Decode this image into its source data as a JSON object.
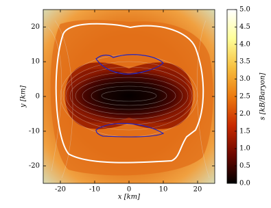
{
  "chart_data": {
    "type": "heatmap",
    "xlabel": "x [km]",
    "ylabel": "y [km]",
    "xlim": [
      -25,
      25
    ],
    "ylim": [
      -25,
      25
    ],
    "xticks": [
      -20,
      -10,
      0,
      10,
      20
    ],
    "yticks": [
      -20,
      -10,
      0,
      10,
      20
    ],
    "colorbar": {
      "label": "s [kB/Baryon]",
      "clim": [
        0,
        5
      ],
      "ticks": [
        {
          "value": 0,
          "label": "0.0"
        },
        {
          "value": 0.5,
          "label": "0.5"
        },
        {
          "value": 1,
          "label": "1.0"
        },
        {
          "value": 1.5,
          "label": "1.5"
        },
        {
          "value": 2,
          "label": "2.0"
        },
        {
          "value": 2.5,
          "label": "2.5"
        },
        {
          "value": 3,
          "label": "3.0"
        },
        {
          "value": 3.5,
          "label": "3.5"
        },
        {
          "value": 4,
          "label": "4.0"
        },
        {
          "value": 4.5,
          "label": "4.5"
        },
        {
          "value": 5,
          "label": "5.0"
        }
      ],
      "colormap": [
        "#000000",
        "#6e0800",
        "#c82a00",
        "#ec7a10",
        "#f7c040",
        "#ffff99",
        "#ffffff"
      ]
    }
  }
}
